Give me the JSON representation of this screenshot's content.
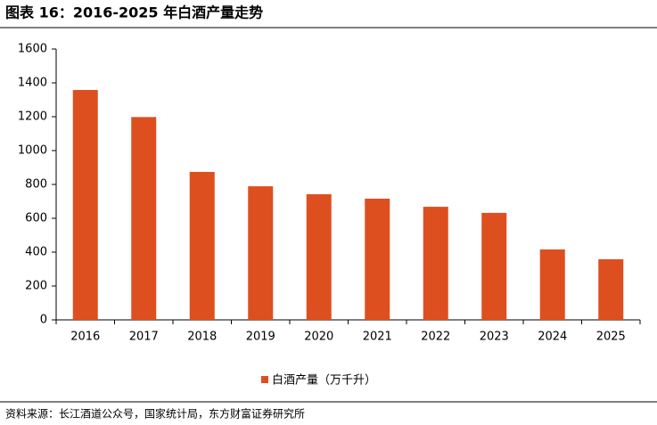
{
  "chart_data": {
    "type": "bar",
    "title": "图表 16：2016-2025 年白酒产量走势",
    "categories": [
      "2016",
      "2017",
      "2018",
      "2019",
      "2020",
      "2021",
      "2022",
      "2023",
      "2024",
      "2025"
    ],
    "series": [
      {
        "name": "白酒产量（万千升）",
        "color": "#de4f1f",
        "values": [
          1358,
          1198,
          874,
          789,
          742,
          716,
          668,
          632,
          416,
          358
        ]
      }
    ],
    "ylim": [
      0,
      1600
    ],
    "yticks": [
      0,
      200,
      400,
      600,
      800,
      1000,
      1200,
      1400,
      1600
    ],
    "grid": false,
    "source": "资料来源：长江酒道公众号，国家统计局，东方财富证券研究所"
  }
}
